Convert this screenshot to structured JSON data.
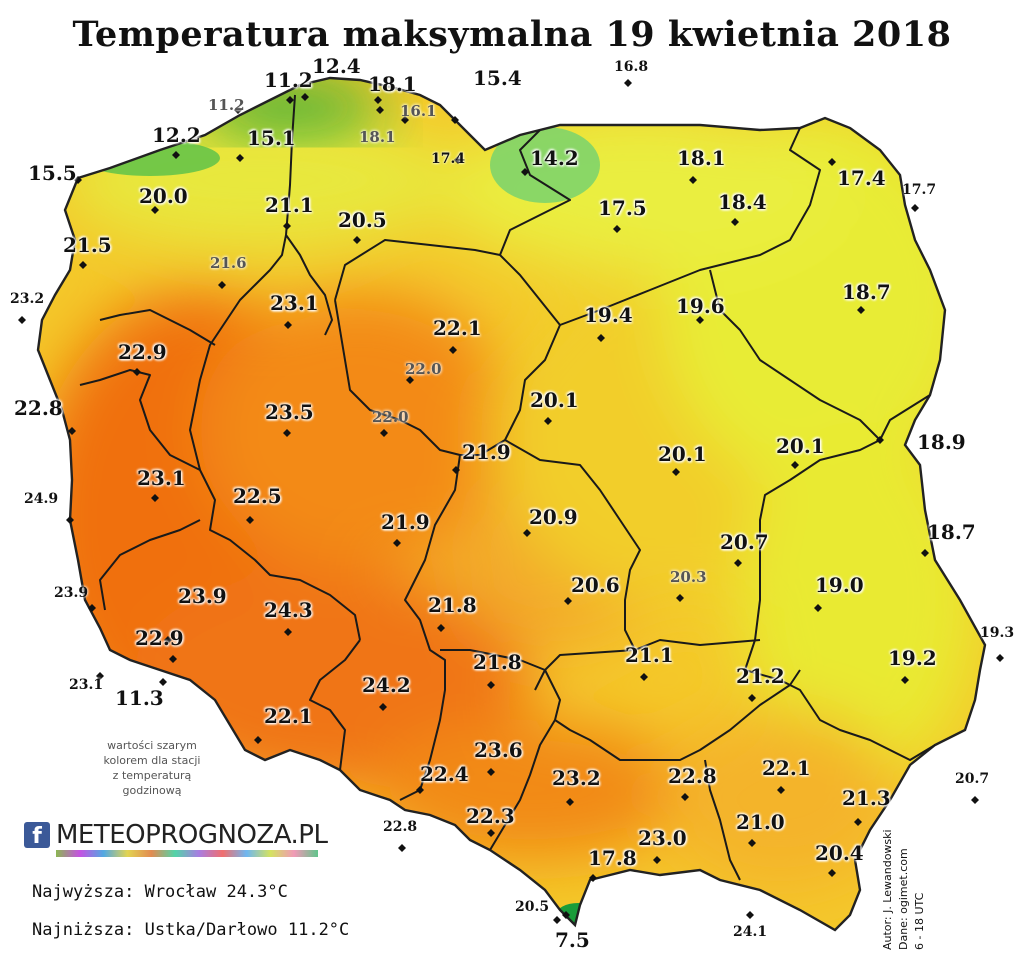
{
  "title": "Temperatura maksymalna 19 kwietnia 2018",
  "note_lines": [
    "wartości szarym",
    "kolorem dla stacji",
    "z temperaturą",
    "godzinową"
  ],
  "logo": {
    "fb": "f",
    "text": "METEOPROGNOZA.PL"
  },
  "summary": {
    "max": "Najwyższa: Wrocław 24.3°C",
    "min": "Najniższa: Ustka/Darłowo 11.2°C"
  },
  "credits": [
    "Autor: J. Lewandowski",
    "Dane: ogimet.com",
    "6 - 18 UTC"
  ],
  "colors": {
    "hot": "#f07a10",
    "warm": "#f8a820",
    "mild": "#f2d028",
    "cool": "#e6ee30",
    "cold": "#2eb42e",
    "border": "#1a1a1a"
  },
  "stations": [
    {
      "t": "12.4",
      "s": "big"
    },
    {
      "t": "11.2",
      "s": "big"
    },
    {
      "t": "18.1",
      "s": "big"
    },
    {
      "t": "15.4",
      "s": "big"
    },
    {
      "t": "16.8",
      "s": "small"
    },
    {
      "t": "11.2",
      "s": "grey"
    },
    {
      "t": "16.1",
      "s": "grey"
    },
    {
      "t": "12.2",
      "s": "big"
    },
    {
      "t": "15.1",
      "s": "big"
    },
    {
      "t": "18.1",
      "s": "grey"
    },
    {
      "t": "17.4",
      "s": "small"
    },
    {
      "t": "14.2",
      "s": "big"
    },
    {
      "t": "18.1",
      "s": "big"
    },
    {
      "t": "17.4",
      "s": "big"
    },
    {
      "t": "17.7",
      "s": "small"
    },
    {
      "t": "15.5",
      "s": "big"
    },
    {
      "t": "20.0",
      "s": "big"
    },
    {
      "t": "21.1",
      "s": "big"
    },
    {
      "t": "20.5",
      "s": "big"
    },
    {
      "t": "17.5",
      "s": "big"
    },
    {
      "t": "18.4",
      "s": "big"
    },
    {
      "t": "21.5",
      "s": "big"
    },
    {
      "t": "21.6",
      "s": "grey"
    },
    {
      "t": "23.2",
      "s": "small"
    },
    {
      "t": "23.1",
      "s": "big"
    },
    {
      "t": "22.1",
      "s": "big"
    },
    {
      "t": "19.4",
      "s": "big"
    },
    {
      "t": "19.6",
      "s": "big"
    },
    {
      "t": "18.7",
      "s": "big"
    },
    {
      "t": "22.9",
      "s": "big"
    },
    {
      "t": "22.0",
      "s": "grey"
    },
    {
      "t": "22.8",
      "s": "big"
    },
    {
      "t": "23.5",
      "s": "big"
    },
    {
      "t": "22.0",
      "s": "grey"
    },
    {
      "t": "20.1",
      "s": "big"
    },
    {
      "t": "21.9",
      "s": "big"
    },
    {
      "t": "20.1",
      "s": "big"
    },
    {
      "t": "20.1",
      "s": "big"
    },
    {
      "t": "18.9",
      "s": "big"
    },
    {
      "t": "23.1",
      "s": "big"
    },
    {
      "t": "24.9",
      "s": "small"
    },
    {
      "t": "22.5",
      "s": "big"
    },
    {
      "t": "21.9",
      "s": "big"
    },
    {
      "t": "20.9",
      "s": "big"
    },
    {
      "t": "20.7",
      "s": "big"
    },
    {
      "t": "18.7",
      "s": "big"
    },
    {
      "t": "23.9",
      "s": "small"
    },
    {
      "t": "23.9",
      "s": "big"
    },
    {
      "t": "24.3",
      "s": "big"
    },
    {
      "t": "21.8",
      "s": "big"
    },
    {
      "t": "20.6",
      "s": "big"
    },
    {
      "t": "20.3",
      "s": "grey"
    },
    {
      "t": "19.0",
      "s": "big"
    },
    {
      "t": "19.3",
      "s": "small"
    },
    {
      "t": "22.9",
      "s": "big"
    },
    {
      "t": "23.1",
      "s": "small"
    },
    {
      "t": "11.3",
      "s": "big"
    },
    {
      "t": "21.8",
      "s": "big"
    },
    {
      "t": "21.1",
      "s": "big"
    },
    {
      "t": "21.2",
      "s": "big"
    },
    {
      "t": "19.2",
      "s": "big"
    },
    {
      "t": "24.2",
      "s": "big"
    },
    {
      "t": "22.1",
      "s": "big"
    },
    {
      "t": "23.6",
      "s": "big"
    },
    {
      "t": "22.4",
      "s": "big"
    },
    {
      "t": "23.2",
      "s": "big"
    },
    {
      "t": "22.8",
      "s": "big"
    },
    {
      "t": "22.1",
      "s": "big"
    },
    {
      "t": "21.3",
      "s": "big"
    },
    {
      "t": "20.7",
      "s": "small"
    },
    {
      "t": "22.3",
      "s": "big"
    },
    {
      "t": "21.0",
      "s": "big"
    },
    {
      "t": "22.8",
      "s": "small"
    },
    {
      "t": "23.0",
      "s": "big"
    },
    {
      "t": "20.4",
      "s": "big"
    },
    {
      "t": "17.8",
      "s": "big"
    },
    {
      "t": "20.5",
      "s": "small"
    },
    {
      "t": "7.5",
      "s": "big"
    },
    {
      "t": "24.1",
      "s": "small"
    }
  ]
}
